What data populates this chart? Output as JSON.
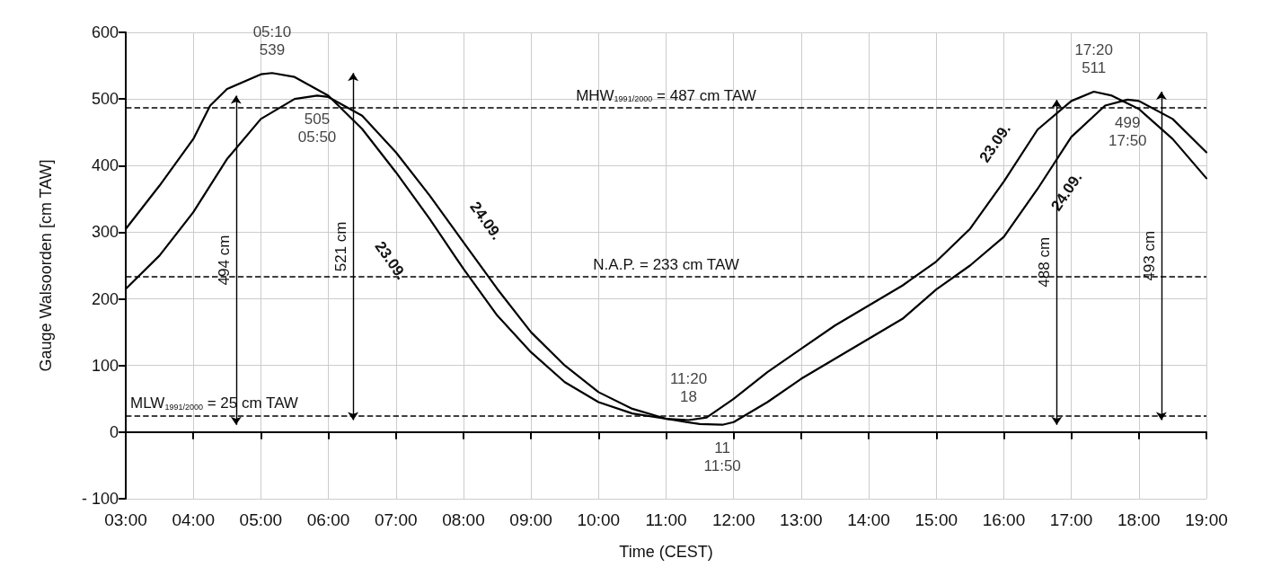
{
  "chart_data": {
    "type": "line",
    "xlabel": "Time (CEST)",
    "ylabel": "Gauge Walsoorden [cm TAW]",
    "xlim": [
      3,
      19
    ],
    "xticks": [
      {
        "value": 3,
        "label": "03:00"
      },
      {
        "value": 4,
        "label": "04:00"
      },
      {
        "value": 5,
        "label": "05:00"
      },
      {
        "value": 6,
        "label": "06:00"
      },
      {
        "value": 7,
        "label": "07:00"
      },
      {
        "value": 8,
        "label": "08:00"
      },
      {
        "value": 9,
        "label": "09:00"
      },
      {
        "value": 10,
        "label": "10:00"
      },
      {
        "value": 11,
        "label": "11:00"
      },
      {
        "value": 12,
        "label": "12:00"
      },
      {
        "value": 13,
        "label": "13:00"
      },
      {
        "value": 14,
        "label": "14:00"
      },
      {
        "value": 15,
        "label": "15:00"
      },
      {
        "value": 16,
        "label": "16:00"
      },
      {
        "value": 17,
        "label": "17:00"
      },
      {
        "value": 18,
        "label": "18:00"
      },
      {
        "value": 19,
        "label": "19:00"
      }
    ],
    "ylim": [
      -100,
      600
    ],
    "yticks": [
      {
        "value": -100,
        "label": "- 100"
      },
      0,
      100,
      200,
      300,
      400,
      500,
      600
    ],
    "grid": true,
    "marker": "none",
    "line_style": "solid",
    "series": [
      {
        "name": "23.09.",
        "color": "#000000",
        "x": [
          3,
          3.5,
          4,
          4.25,
          4.5,
          5,
          5.1667,
          5.5,
          6,
          6.5,
          7,
          7.5,
          8,
          8.5,
          9,
          9.5,
          10,
          10.5,
          11,
          11.3333,
          11.6,
          12,
          12.5,
          13,
          13.5,
          14,
          14.5,
          15,
          15.5,
          16,
          16.5,
          17,
          17.3333,
          17.6,
          18,
          18.5,
          19
        ],
        "values": [
          305,
          370,
          440,
          490,
          515,
          537,
          539,
          533,
          505,
          455,
          390,
          320,
          245,
          175,
          120,
          75,
          45,
          28,
          20,
          18,
          22,
          50,
          90,
          125,
          160,
          190,
          220,
          256,
          305,
          376,
          454,
          497,
          511,
          505,
          485,
          440,
          381
        ]
      },
      {
        "name": "24.09.",
        "color": "#000000",
        "x": [
          3,
          3.5,
          4,
          4.5,
          5,
          5.5,
          5.8333,
          6,
          6.5,
          7,
          7.5,
          8,
          8.5,
          9,
          9.5,
          10,
          10.5,
          11,
          11.5,
          11.8333,
          12,
          12.5,
          13,
          13.5,
          14,
          14.5,
          15,
          15.5,
          16,
          16.5,
          17,
          17.5,
          17.8333,
          18,
          18.5,
          19
        ],
        "values": [
          215,
          265,
          330,
          410,
          470,
          500,
          505,
          503,
          475,
          420,
          355,
          285,
          215,
          150,
          100,
          60,
          35,
          20,
          12,
          11,
          15,
          45,
          80,
          110,
          140,
          170,
          214,
          250,
          293,
          365,
          443,
          490,
          499,
          497,
          470,
          420
        ]
      }
    ],
    "ref_lines": [
      {
        "axis": "y",
        "value": 487,
        "label": "MHW$_{1991/2000}$ = 487 cm TAW",
        "line_style": "dashed",
        "color": "#000000"
      },
      {
        "axis": "y",
        "value": 233,
        "label": "N.A.P. = 233 cm TAW",
        "line_style": "dashed",
        "color": "#000000"
      },
      {
        "axis": "y",
        "value": 25,
        "label": "MLW$_{1991/2000}$ = 25 cm TAW",
        "line_style": "dashed",
        "color": "#000000"
      }
    ],
    "annotations": [
      {
        "text": "05:10\n539",
        "x": 5.1667,
        "y": 539
      },
      {
        "text": "505\n05:50",
        "x": 5.8333,
        "y": 505
      },
      {
        "text": "11:20\n18",
        "x": 11.3333,
        "y": 18
      },
      {
        "text": "11\n11:50",
        "x": 11.8333,
        "y": 11
      },
      {
        "text": "17:20\n511",
        "x": 17.3333,
        "y": 511
      },
      {
        "text": "499\n17:50",
        "x": 17.8333,
        "y": 499
      },
      "521 cm",
      "494 cm",
      "493 cm",
      "488 cm"
    ]
  }
}
